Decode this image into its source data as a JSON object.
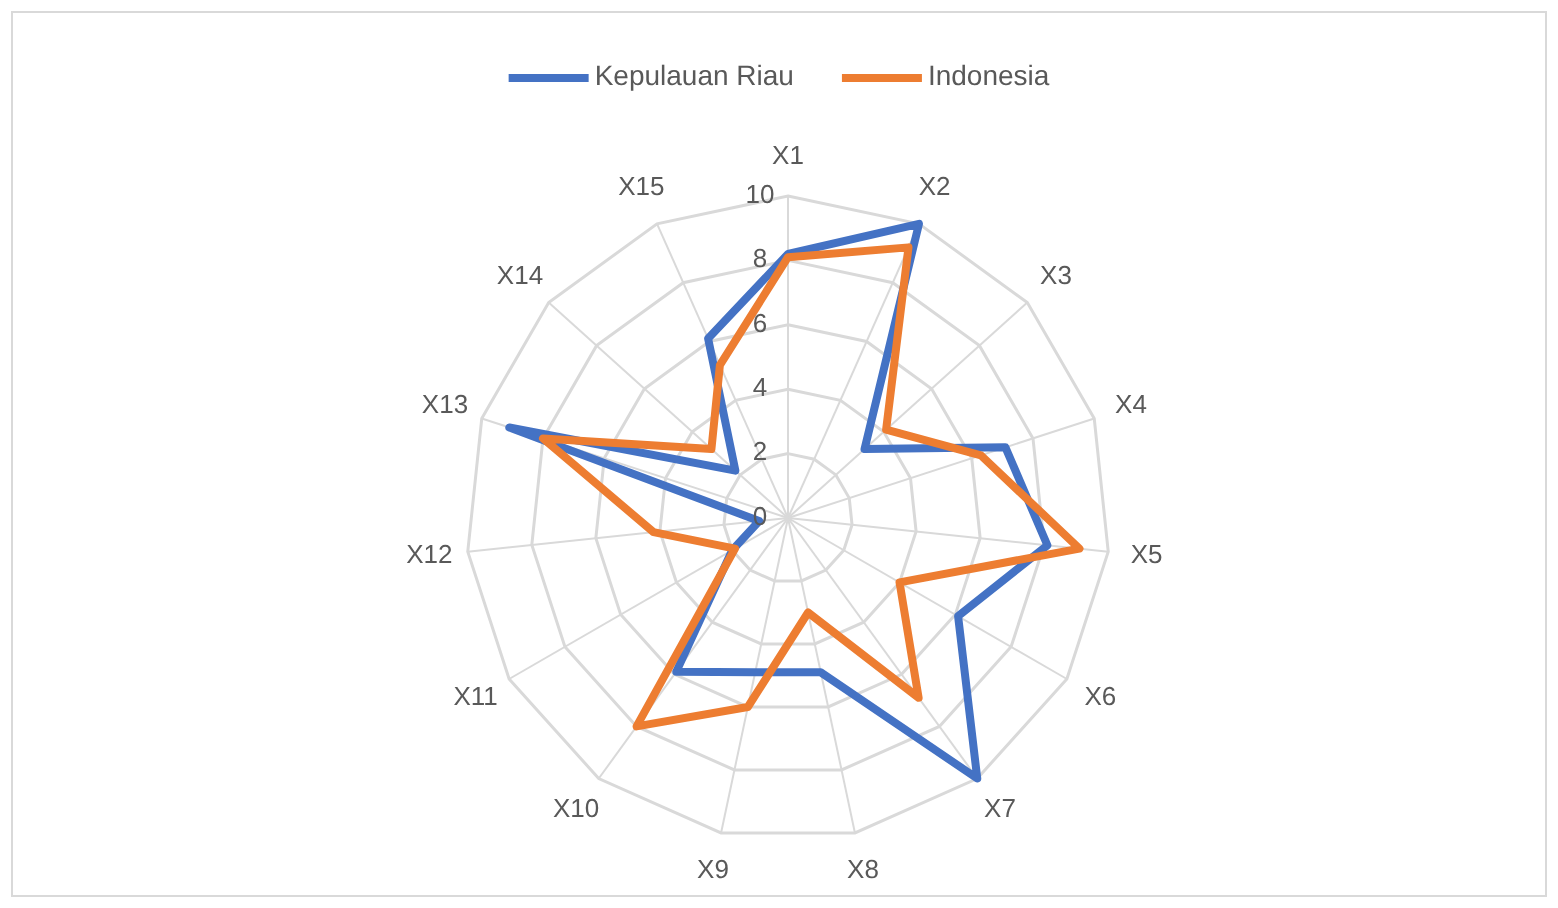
{
  "chart_data": {
    "type": "radar",
    "categories": [
      "X1",
      "X2",
      "X3",
      "X4",
      "X5",
      "X6",
      "X7",
      "X8",
      "X9",
      "X10",
      "X11",
      "X12",
      "X13",
      "X14",
      "X15"
    ],
    "ylim": [
      0,
      10
    ],
    "yticks": [
      0,
      2,
      4,
      6,
      8,
      10
    ],
    "grid": true,
    "legend": "top",
    "series": [
      {
        "name": "Kepulauan Riau",
        "color": "#4472c4",
        "values": [
          8.2,
          10,
          3.2,
          7.1,
          8.1,
          6.1,
          10,
          4.9,
          4.9,
          5.9,
          2,
          0.9,
          9.1,
          2.2,
          6.1
        ]
      },
      {
        "name": "Indonesia",
        "color": "#ed7d31",
        "values": [
          8.1,
          9.2,
          4.1,
          6.3,
          9.1,
          4,
          6.9,
          3,
          6,
          8,
          1.9,
          4.2,
          8,
          3.2,
          5.2
        ]
      }
    ]
  }
}
